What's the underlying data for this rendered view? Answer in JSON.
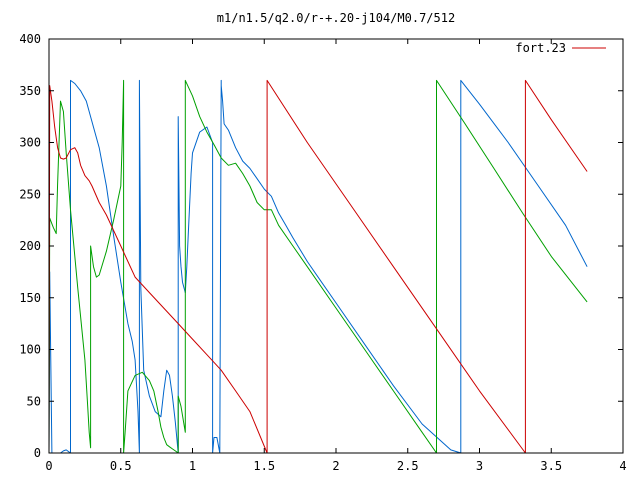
{
  "chart_data": {
    "type": "line",
    "title": "m1/n1.5/q2.0/r-+.20-j104/M0.7/512",
    "xlabel": "",
    "ylabel": "",
    "xlim": [
      0,
      4
    ],
    "ylim": [
      0,
      400
    ],
    "xticks": [
      0,
      0.5,
      1,
      1.5,
      2,
      2.5,
      3,
      3.5,
      4
    ],
    "xtick_labels": [
      "0",
      "0.5",
      "1",
      "1.5",
      "2",
      "2.5",
      "3",
      "3.5",
      "4"
    ],
    "yticks": [
      0,
      50,
      100,
      150,
      200,
      250,
      300,
      350,
      400
    ],
    "ytick_labels": [
      "0",
      "50",
      "100",
      "150",
      "200",
      "250",
      "300",
      "350",
      "400"
    ],
    "grid": false,
    "legend": {
      "position": "top-right",
      "entries": [
        "fort.23"
      ]
    },
    "series": [
      {
        "name": "fort.23",
        "color": "#cc0000",
        "x": [
          0,
          0.005,
          0.02,
          0.04,
          0.06,
          0.08,
          0.1,
          0.12,
          0.15,
          0.18,
          0.2,
          0.22,
          0.25,
          0.28,
          0.3,
          0.35,
          0.4,
          0.45,
          0.5,
          0.55,
          0.6,
          0.7,
          0.8,
          0.9,
          1.0,
          1.1,
          1.2,
          1.3,
          1.4,
          1.52,
          1.52,
          1.8,
          2.1,
          2.4,
          2.7,
          3.0,
          3.32,
          3.32,
          3.5,
          3.75
        ],
        "y": [
          0,
          355,
          340,
          315,
          295,
          285,
          284,
          285,
          293,
          295,
          290,
          278,
          268,
          263,
          258,
          242,
          230,
          215,
          200,
          185,
          170,
          155,
          140,
          125,
          110,
          95,
          80,
          60,
          40,
          0,
          360,
          300,
          240,
          180,
          120,
          60,
          0,
          360,
          322,
          272
        ]
      },
      {
        "color": "#0066cc",
        "x": [
          0,
          0.005,
          0.02,
          0.05,
          0.08,
          0.1,
          0.12,
          0.15,
          0.15,
          0.18,
          0.22,
          0.26,
          0.3,
          0.35,
          0.4,
          0.45,
          0.5,
          0.55,
          0.58,
          0.6,
          0.62,
          0.63,
          0.63,
          0.64,
          0.66,
          0.7,
          0.74,
          0.78,
          0.8,
          0.82,
          0.84,
          0.86,
          0.88,
          0.9,
          0.9,
          0.91,
          0.92,
          0.93,
          0.95,
          0.96,
          0.97,
          0.99,
          1.0,
          1.05,
          1.1,
          1.14,
          1.14,
          1.15,
          1.17,
          1.19,
          1.2,
          1.2,
          1.21,
          1.22,
          1.25,
          1.3,
          1.35,
          1.4,
          1.45,
          1.5,
          1.55,
          1.6,
          1.65,
          1.7,
          1.8,
          1.9,
          2.0,
          2.2,
          2.4,
          2.6,
          2.8,
          2.87,
          2.87,
          3.0,
          3.2,
          3.4,
          3.6,
          3.75
        ],
        "y": [
          0,
          175,
          0,
          0,
          0,
          2,
          3,
          0,
          360,
          357,
          350,
          340,
          320,
          295,
          258,
          210,
          165,
          125,
          108,
          90,
          40,
          0,
          360,
          160,
          80,
          55,
          40,
          35,
          60,
          80,
          75,
          55,
          30,
          0,
          325,
          200,
          180,
          165,
          155,
          180,
          210,
          270,
          290,
          310,
          315,
          300,
          0,
          15,
          15,
          0,
          360,
          355,
          340,
          318,
          312,
          295,
          282,
          275,
          265,
          255,
          248,
          232,
          220,
          208,
          185,
          165,
          145,
          105,
          65,
          28,
          3,
          0,
          360,
          337,
          300,
          260,
          220,
          180
        ]
      },
      {
        "color": "#00a000",
        "x": [
          0,
          0.005,
          0.03,
          0.05,
          0.06,
          0.08,
          0.1,
          0.12,
          0.15,
          0.2,
          0.25,
          0.27,
          0.28,
          0.29,
          0.29,
          0.31,
          0.33,
          0.35,
          0.4,
          0.45,
          0.5,
          0.51,
          0.52,
          0.52,
          0.53,
          0.55,
          0.6,
          0.65,
          0.7,
          0.73,
          0.76,
          0.78,
          0.8,
          0.82,
          0.84,
          0.86,
          0.88,
          0.9,
          0.9,
          0.92,
          0.95,
          0.95,
          1.0,
          1.05,
          1.1,
          1.15,
          1.2,
          1.25,
          1.3,
          1.35,
          1.4,
          1.45,
          1.5,
          1.55,
          1.6,
          1.7,
          1.8,
          2.0,
          2.2,
          2.4,
          2.6,
          2.7,
          2.7,
          2.9,
          3.1,
          3.3,
          3.5,
          3.75
        ],
        "y": [
          0,
          227,
          218,
          212,
          260,
          340,
          330,
          290,
          235,
          160,
          90,
          45,
          20,
          5,
          200,
          180,
          170,
          172,
          195,
          225,
          258,
          300,
          360,
          0,
          20,
          60,
          75,
          78,
          70,
          60,
          40,
          25,
          15,
          8,
          6,
          4,
          2,
          0,
          55,
          45,
          20,
          360,
          345,
          325,
          310,
          298,
          285,
          278,
          280,
          270,
          258,
          242,
          235,
          235,
          220,
          200,
          180,
          140,
          100,
          60,
          20,
          0,
          360,
          318,
          275,
          232,
          190,
          146
        ]
      }
    ]
  }
}
